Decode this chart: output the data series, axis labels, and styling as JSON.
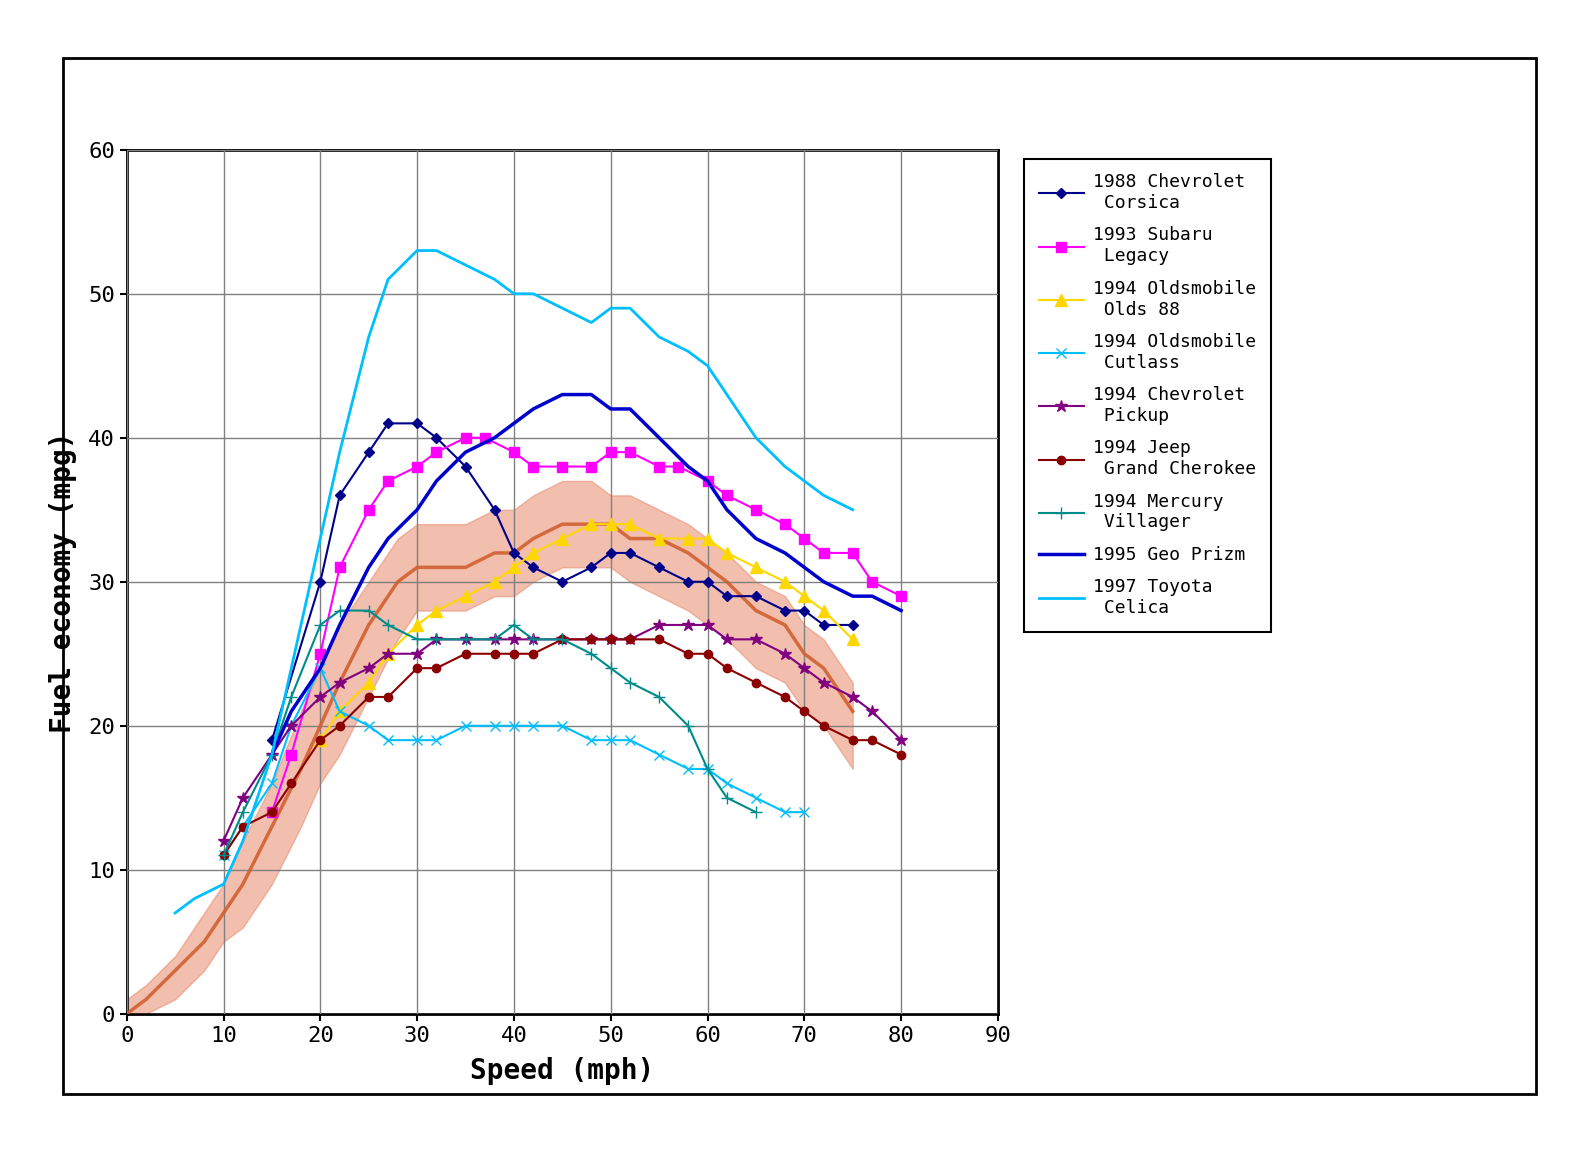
{
  "title": "",
  "xlabel": "Speed (mph)",
  "ylabel": "Fuel economy (mpg)",
  "xlim": [
    0,
    90
  ],
  "ylim": [
    0,
    60
  ],
  "xticks": [
    0,
    10,
    20,
    30,
    40,
    50,
    60,
    70,
    80,
    90
  ],
  "yticks": [
    0,
    10,
    20,
    30,
    40,
    50,
    60
  ],
  "series": [
    {
      "label": "1988 Chevrolet\n  Corsica",
      "color": "#00008B",
      "marker": "D",
      "markersize": 5,
      "linewidth": 1.5,
      "x": [
        15,
        20,
        22,
        25,
        27,
        30,
        32,
        35,
        38,
        40,
        42,
        45,
        48,
        50,
        52,
        55,
        58,
        60,
        62,
        65,
        68,
        70,
        72,
        75
      ],
      "y": [
        19,
        30,
        36,
        39,
        41,
        41,
        40,
        38,
        35,
        32,
        31,
        30,
        31,
        32,
        32,
        31,
        30,
        30,
        29,
        29,
        28,
        28,
        27,
        27
      ]
    },
    {
      "label": "1993 Subaru\n  Legacy",
      "color": "#FF00FF",
      "marker": "s",
      "markersize": 7,
      "linewidth": 1.5,
      "x": [
        15,
        17,
        20,
        22,
        25,
        27,
        30,
        32,
        35,
        37,
        40,
        42,
        45,
        48,
        50,
        52,
        55,
        57,
        60,
        62,
        65,
        68,
        70,
        72,
        75,
        77,
        80
      ],
      "y": [
        14,
        18,
        25,
        31,
        35,
        37,
        38,
        39,
        40,
        40,
        39,
        38,
        38,
        38,
        39,
        39,
        38,
        38,
        37,
        36,
        35,
        34,
        33,
        32,
        32,
        30,
        29
      ]
    },
    {
      "label": "1994 Oldsmobile\n  Olds 88",
      "color": "#FFD700",
      "marker": "^",
      "markersize": 8,
      "linewidth": 1.5,
      "x": [
        20,
        22,
        25,
        27,
        30,
        32,
        35,
        38,
        40,
        42,
        45,
        48,
        50,
        52,
        55,
        58,
        60,
        62,
        65,
        68,
        70,
        72,
        75
      ],
      "y": [
        19,
        21,
        23,
        25,
        27,
        28,
        29,
        30,
        31,
        32,
        33,
        34,
        34,
        34,
        33,
        33,
        33,
        32,
        31,
        30,
        29,
        28,
        26
      ]
    },
    {
      "label": "1994 Oldsmobile\n  Cutlass",
      "color": "#00BFFF",
      "marker": "x",
      "markersize": 7,
      "linewidth": 1.5,
      "x": [
        10,
        12,
        15,
        17,
        20,
        22,
        25,
        27,
        30,
        32,
        35,
        38,
        40,
        42,
        45,
        48,
        50,
        52,
        55,
        58,
        60,
        62,
        65,
        68,
        70
      ],
      "y": [
        11,
        13,
        16,
        20,
        24,
        21,
        20,
        19,
        19,
        19,
        20,
        20,
        20,
        20,
        20,
        19,
        19,
        19,
        18,
        17,
        17,
        16,
        15,
        14,
        14
      ]
    },
    {
      "label": "1994 Chevrolet\n  Pickup",
      "color": "#800080",
      "marker": "*",
      "markersize": 9,
      "linewidth": 1.5,
      "x": [
        10,
        12,
        15,
        17,
        20,
        22,
        25,
        27,
        30,
        32,
        35,
        38,
        40,
        42,
        45,
        48,
        50,
        52,
        55,
        58,
        60,
        62,
        65,
        68,
        70,
        72,
        75,
        77,
        80
      ],
      "y": [
        12,
        15,
        18,
        20,
        22,
        23,
        24,
        25,
        25,
        26,
        26,
        26,
        26,
        26,
        26,
        26,
        26,
        26,
        27,
        27,
        27,
        26,
        26,
        25,
        24,
        23,
        22,
        21,
        19
      ]
    },
    {
      "label": "1994 Jeep\n  Grand Cherokee",
      "color": "#8B0000",
      "marker": "o",
      "markersize": 6,
      "linewidth": 1.5,
      "x": [
        10,
        12,
        15,
        17,
        20,
        22,
        25,
        27,
        30,
        32,
        35,
        38,
        40,
        42,
        45,
        48,
        50,
        52,
        55,
        58,
        60,
        62,
        65,
        68,
        70,
        72,
        75,
        77,
        80
      ],
      "y": [
        11,
        13,
        14,
        16,
        19,
        20,
        22,
        22,
        24,
        24,
        25,
        25,
        25,
        25,
        26,
        26,
        26,
        26,
        26,
        25,
        25,
        24,
        23,
        22,
        21,
        20,
        19,
        19,
        18
      ]
    },
    {
      "label": "1994 Mercury\n  Villager",
      "color": "#008B8B",
      "marker": "+",
      "markersize": 8,
      "linewidth": 1.5,
      "x": [
        10,
        12,
        15,
        17,
        20,
        22,
        25,
        27,
        30,
        32,
        35,
        38,
        40,
        42,
        45,
        48,
        50,
        52,
        55,
        58,
        60,
        62,
        65
      ],
      "y": [
        11,
        14,
        18,
        22,
        27,
        28,
        28,
        27,
        26,
        26,
        26,
        26,
        27,
        26,
        26,
        25,
        24,
        23,
        22,
        20,
        17,
        15,
        14
      ]
    },
    {
      "label": "1995 Geo Prizm",
      "color": "#0000CD",
      "marker": "None",
      "markersize": 0,
      "linewidth": 2.5,
      "x": [
        15,
        17,
        20,
        22,
        25,
        27,
        30,
        32,
        35,
        38,
        40,
        42,
        45,
        48,
        50,
        52,
        55,
        58,
        60,
        62,
        65,
        68,
        70,
        72,
        75,
        77,
        80
      ],
      "y": [
        18,
        21,
        24,
        27,
        31,
        33,
        35,
        37,
        39,
        40,
        41,
        42,
        43,
        43,
        42,
        42,
        40,
        38,
        37,
        35,
        33,
        32,
        31,
        30,
        29,
        29,
        28
      ]
    },
    {
      "label": "1997 Toyota\n  Celica",
      "color": "#00BFFF",
      "marker": "None",
      "markersize": 0,
      "linewidth": 2.0,
      "x": [
        5,
        7,
        10,
        12,
        15,
        17,
        20,
        22,
        25,
        27,
        30,
        32,
        35,
        38,
        40,
        42,
        45,
        48,
        50,
        52,
        55,
        58,
        60,
        62,
        65,
        68,
        70,
        72,
        75
      ],
      "y": [
        7,
        8,
        9,
        12,
        18,
        24,
        33,
        39,
        47,
        51,
        53,
        53,
        52,
        51,
        50,
        50,
        49,
        48,
        49,
        49,
        47,
        46,
        45,
        43,
        40,
        38,
        37,
        36,
        35
      ]
    }
  ],
  "fit_x": [
    0,
    2,
    5,
    8,
    10,
    12,
    15,
    18,
    20,
    22,
    25,
    28,
    30,
    32,
    35,
    38,
    40,
    42,
    45,
    48,
    50,
    52,
    55,
    58,
    60,
    62,
    65,
    68,
    70,
    72,
    75
  ],
  "fit_y_center": [
    0,
    1,
    3,
    5,
    7,
    9,
    13,
    17,
    20,
    23,
    27,
    30,
    31,
    31,
    31,
    32,
    32,
    33,
    34,
    34,
    34,
    33,
    33,
    32,
    31,
    30,
    28,
    27,
    25,
    24,
    21
  ],
  "fit_y_upper": [
    1,
    2,
    4,
    7,
    9,
    12,
    16,
    21,
    24,
    27,
    30,
    33,
    34,
    34,
    34,
    35,
    35,
    36,
    37,
    37,
    36,
    36,
    35,
    34,
    33,
    32,
    30,
    29,
    27,
    26,
    23
  ],
  "fit_y_lower": [
    0,
    0,
    1,
    3,
    5,
    6,
    9,
    13,
    16,
    18,
    22,
    26,
    28,
    28,
    28,
    29,
    29,
    30,
    31,
    31,
    31,
    30,
    29,
    28,
    27,
    26,
    24,
    23,
    21,
    20,
    17
  ],
  "fit_color": "#E8896A",
  "fit_line_color": "#D06030",
  "fit_alpha": 0.55,
  "background_color": "#FFFFFF",
  "grid_color": "#808080",
  "legend_labels": [
    "1988 Chevrolet\n  Corsica",
    "1993 Subaru\n  Legacy",
    "1994 Oldsmobile\n  Olds 88",
    "1994 Oldsmobile\n  Cutlass",
    "1994 Chevrolet\n  Pickup",
    "1994 Jeep\n  Grand Cherokee",
    "1994 Mercury\n  Villager",
    "1995 Geo Prizm",
    "1997 Toyota\n  Celica"
  ]
}
